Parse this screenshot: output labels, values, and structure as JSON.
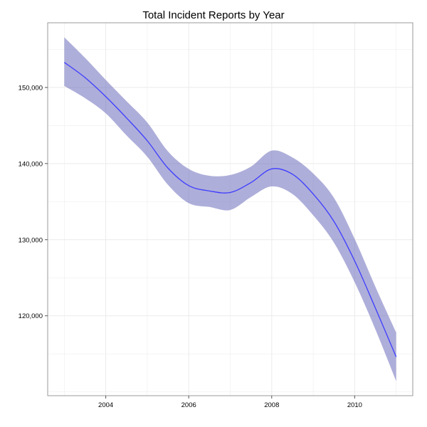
{
  "chart_data": {
    "type": "line",
    "title": "Total Incident Reports by Year",
    "xlabel": "",
    "ylabel": "",
    "xlim": [
      2002.6,
      2011.4
    ],
    "ylim": [
      109500,
      158500
    ],
    "x_ticks": [
      2004,
      2006,
      2008,
      2010
    ],
    "x_tick_labels": [
      "2004",
      "2006",
      "2008",
      "2010"
    ],
    "y_ticks": [
      120000,
      130000,
      140000,
      150000
    ],
    "y_tick_labels": [
      "120,000",
      "130,000",
      "140,000",
      "150,000"
    ],
    "grid": true,
    "legend": "none",
    "series": [
      {
        "x": [
          2003,
          2003.5,
          2004,
          2004.5,
          2005,
          2005.5,
          2006,
          2006.5,
          2007,
          2007.5,
          2008,
          2008.5,
          2009,
          2009.5,
          2010,
          2010.5,
          2011
        ],
        "y": [
          153300,
          151300,
          148800,
          146000,
          143000,
          139400,
          137100,
          136400,
          136200,
          137500,
          139300,
          138600,
          136000,
          132400,
          127200,
          121000,
          114600
        ],
        "lower": [
          150200,
          148600,
          146600,
          143700,
          140900,
          137200,
          134800,
          134300,
          133900,
          135600,
          137000,
          136000,
          133200,
          129600,
          124400,
          118200,
          111400
        ],
        "upper": [
          156600,
          153900,
          151000,
          148200,
          145400,
          141600,
          139300,
          138400,
          138500,
          139600,
          141700,
          140800,
          138700,
          135500,
          130100,
          123800,
          117800
        ]
      }
    ],
    "colors": {
      "line": "#3d3dff",
      "band": "#6b6bbb",
      "band_opacity": 0.55,
      "grid": "#ebebeb",
      "panel_border": "#999999"
    }
  }
}
